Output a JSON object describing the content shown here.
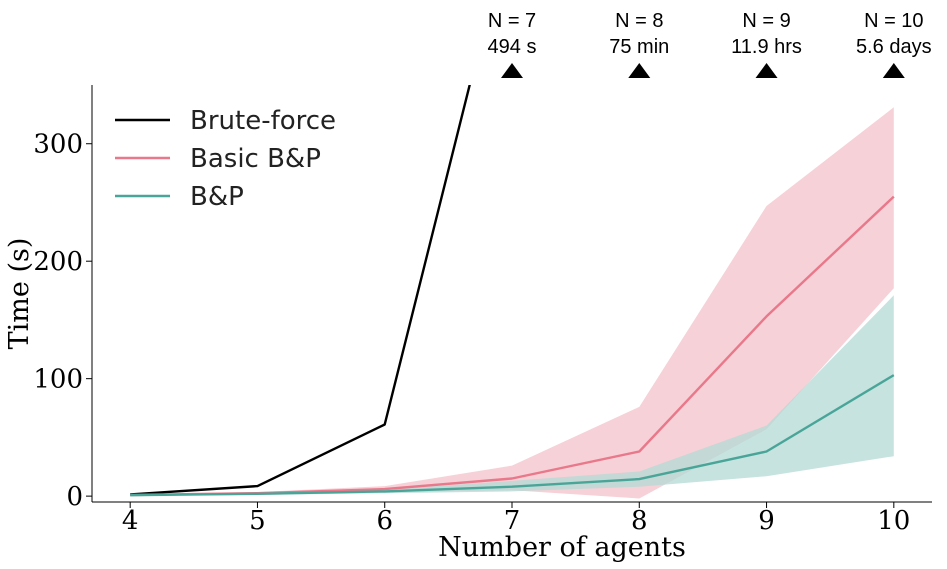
{
  "chart_data": {
    "type": "line",
    "title": "",
    "xlabel": "Number of agents",
    "ylabel": "Time (s)",
    "xlim": [
      3.7,
      10.3
    ],
    "ylim": [
      -5,
      350
    ],
    "x": [
      4,
      5,
      6,
      7,
      8,
      9,
      10
    ],
    "xticks": [
      "4",
      "5",
      "6",
      "7",
      "8",
      "9",
      "10"
    ],
    "yticks": [
      0,
      100,
      200,
      300
    ],
    "grid": false,
    "legend_position": "top-left",
    "series": [
      {
        "name": "Brute-force",
        "color": "#000000",
        "values": [
          1.5,
          8.5,
          61,
          494,
          null,
          null,
          null
        ],
        "clipped": true
      },
      {
        "name": "Basic B&P",
        "color": "#e8788a",
        "band_color": "#f4c5cd",
        "values": [
          1,
          2.5,
          6,
          15,
          38,
          153,
          255
        ],
        "upper": [
          1.5,
          3.5,
          8.5,
          26,
          76,
          247,
          331
        ],
        "lower": [
          0.5,
          1.5,
          3.5,
          5,
          -2,
          57,
          177
        ]
      },
      {
        "name": "B&P",
        "color": "#4aa599",
        "band_color": "#b3d9d5",
        "values": [
          0.8,
          2,
          4,
          8,
          14.5,
          38,
          103
        ],
        "upper": [
          1.2,
          3,
          5.5,
          13,
          21,
          60,
          171
        ],
        "lower": [
          0.4,
          1,
          2.5,
          4,
          8,
          17,
          34
        ]
      }
    ],
    "annotations": [
      {
        "x": 7,
        "line1": "N = 7",
        "line2": "494 s",
        "marker": "triangle-up"
      },
      {
        "x": 8,
        "line1": "N = 8",
        "line2": "75 min",
        "marker": "triangle-up"
      },
      {
        "x": 9,
        "line1": "N = 9",
        "line2": "11.9 hrs",
        "marker": "triangle-up"
      },
      {
        "x": 10,
        "line1": "N = 10",
        "line2": "5.6 days",
        "marker": "triangle-up"
      }
    ]
  }
}
